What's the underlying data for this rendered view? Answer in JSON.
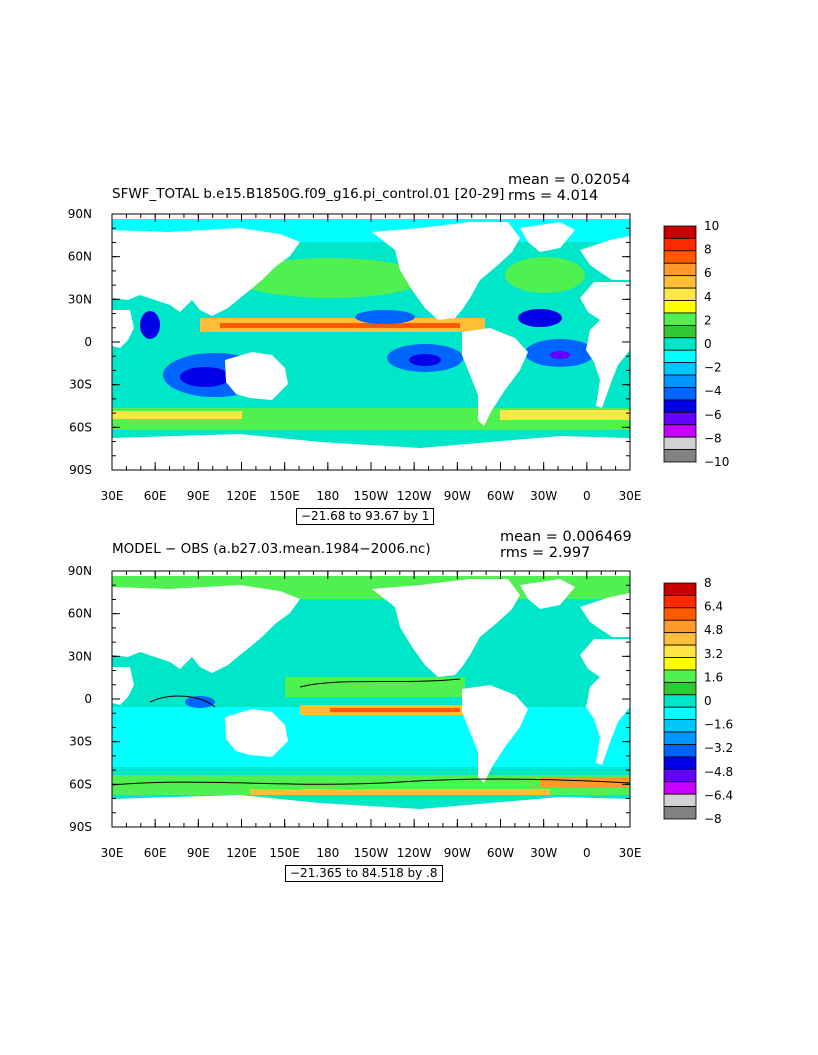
{
  "panels": [
    {
      "title": "SFWF_TOTAL b.e15.B1850G.f09_g16.pi_control.01 [20-29]",
      "mean_label": "mean = 0.02054",
      "rms_label": "rms = 4.014",
      "range_label": "−21.68 to 93.67 by 1",
      "y_ticks": [
        "90N",
        "60N",
        "30N",
        "0",
        "30S",
        "60S",
        "90S"
      ],
      "x_ticks": [
        "30E",
        "60E",
        "90E",
        "120E",
        "150E",
        "180",
        "150W",
        "120W",
        "90W",
        "60W",
        "30W",
        "0",
        "30E"
      ],
      "colorbar_labels": [
        "10",
        "8",
        "6",
        "4",
        "2",
        "0",
        "−2",
        "−4",
        "−6",
        "−8",
        "−10"
      ],
      "colorbar_colors": [
        "#c80000",
        "#ff2a00",
        "#ff5a00",
        "#ff9a28",
        "#ffbe37",
        "#ffe646",
        "#ffff00",
        "#50f050",
        "#32c832",
        "#00e6c8",
        "#00ffff",
        "#00c8ff",
        "#0096ff",
        "#0064ff",
        "#0000e6",
        "#6400ff",
        "#c800ff",
        "#d2d2d2",
        "#828282"
      ]
    },
    {
      "title": "MODEL − OBS (a.b27.03.mean.1984−2006.nc)",
      "mean_label": "mean = 0.006469",
      "rms_label": "rms = 2.997",
      "range_label": "−21.365 to 84.518 by .8",
      "y_ticks": [
        "90N",
        "60N",
        "30N",
        "0",
        "30S",
        "60S",
        "90S"
      ],
      "x_ticks": [
        "30E",
        "60E",
        "90E",
        "120E",
        "150E",
        "180",
        "150W",
        "120W",
        "90W",
        "60W",
        "30W",
        "0",
        "30E"
      ],
      "colorbar_labels": [
        "8",
        "6.4",
        "4.8",
        "3.2",
        "1.6",
        "0",
        "−1.6",
        "−3.2",
        "−4.8",
        "−6.4",
        "−8"
      ],
      "colorbar_colors": [
        "#c80000",
        "#ff2a00",
        "#ff5a00",
        "#ff9a28",
        "#ffbe37",
        "#ffe646",
        "#ffff00",
        "#50f050",
        "#32c832",
        "#00e6c8",
        "#00ffff",
        "#00c8ff",
        "#0096ff",
        "#0064ff",
        "#0000e6",
        "#6400ff",
        "#c800ff",
        "#d2d2d2",
        "#828282"
      ]
    }
  ]
}
